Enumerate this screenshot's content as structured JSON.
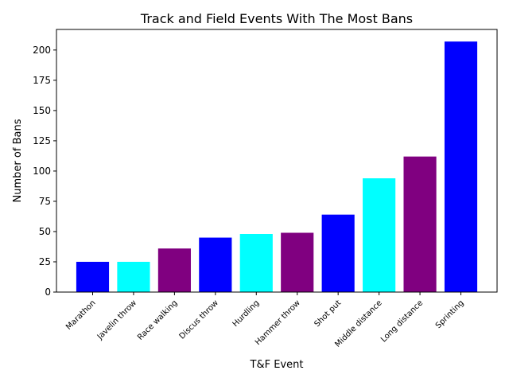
{
  "chart_data": {
    "type": "bar",
    "title": "Track and Field Events With The Most Bans",
    "xlabel": "T&F Event",
    "ylabel": "Number of Bans",
    "categories": [
      "Marathon",
      "Javelin throw",
      "Race walking",
      "Discus throw",
      "Hurdling",
      "Hammer throw",
      "Shot put",
      "Middle distance",
      "Long distance",
      "Sprinting"
    ],
    "values": [
      25,
      25,
      36,
      45,
      48,
      49,
      64,
      94,
      112,
      207
    ],
    "colors": [
      "#0000ff",
      "#00ffff",
      "#800080",
      "#0000ff",
      "#00ffff",
      "#800080",
      "#0000ff",
      "#00ffff",
      "#800080",
      "#0000ff"
    ],
    "ylim": [
      0,
      217
    ],
    "yticks": [
      0,
      25,
      50,
      75,
      100,
      125,
      150,
      175,
      200
    ],
    "grid": false,
    "legend": "none"
  }
}
